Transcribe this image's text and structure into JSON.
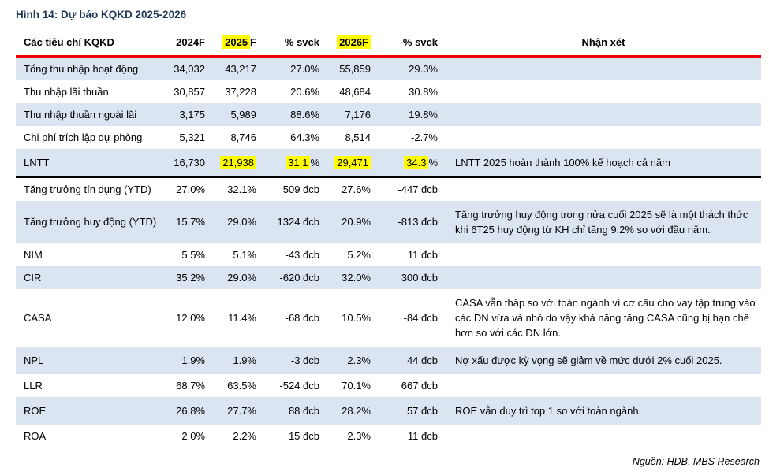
{
  "figure_title": "Hình 14: Dự báo KQKD 2025-2026",
  "source_note": "Nguồn: HDB, MBS Research",
  "colors": {
    "title": "#1f3655",
    "header_rule": "#ee0000",
    "row_alt": "#dbe5f1",
    "highlight": "#ffff00",
    "separator": "#000000"
  },
  "table": {
    "columns": [
      {
        "key": "label",
        "label": "Các tiêu chí KQKD",
        "align": "lbl"
      },
      {
        "key": "y2024",
        "label": "2024F",
        "align": "num"
      },
      {
        "key": "y2025",
        "label": "2025F",
        "label_hl": "2025",
        "align": "num"
      },
      {
        "key": "svck1",
        "label": "% svck",
        "align": "num"
      },
      {
        "key": "y2026",
        "label": "2026F",
        "label_hl": "2026F",
        "align": "num"
      },
      {
        "key": "svck2",
        "label": "% svck",
        "align": "num"
      },
      {
        "key": "note",
        "label": "Nhận xét",
        "align": "note"
      }
    ],
    "rows": [
      {
        "label": "Tổng thu nhập hoạt động",
        "y2024": "34,032",
        "y2025": "43,217",
        "svck1": "27.0%",
        "y2026": "55,859",
        "svck2": "29.3%",
        "note": ""
      },
      {
        "label": "Thu nhập lãi thuần",
        "y2024": "30,857",
        "y2025": "37,228",
        "svck1": "20.6%",
        "y2026": "48,684",
        "svck2": "30.8%",
        "note": ""
      },
      {
        "label": "Thu nhập thuần ngoài lãi",
        "y2024": "3,175",
        "y2025": "5,989",
        "svck1": "88.6%",
        "y2026": "7,176",
        "svck2": "19.8%",
        "note": ""
      },
      {
        "label": "Chi phí trích lập dự phòng",
        "y2024": "5,321",
        "y2025": "8,746",
        "svck1": "64.3%",
        "y2026": "8,514",
        "svck2": "-2.7%",
        "note": ""
      },
      {
        "label": "LNTT",
        "y2024": "16,730",
        "y2025": "21,938",
        "svck1": "31.1%",
        "y2026": "29,471",
        "svck2": "34.3%",
        "note": "LNTT 2025 hoàn thành 100% kế hoạch cả năm",
        "separator_below": true,
        "hl": {
          "y2025": "21,938",
          "svck1": "31.1",
          "y2026": "29,471",
          "svck2": "34.3"
        }
      },
      {
        "label": "Tăng trưởng tín dụng (YTD)",
        "y2024": "27.0%",
        "y2025": "32.1%",
        "svck1": "509 đcb",
        "y2026": "27.6%",
        "svck2": "-447 đcb",
        "note": ""
      },
      {
        "label": "Tăng trưởng huy động (YTD)",
        "y2024": "15.7%",
        "y2025": "29.0%",
        "svck1": "1324 đcb",
        "y2026": "20.9%",
        "svck2": "-813 đcb",
        "note": "Tăng trưởng huy động trong nửa cuối 2025 sẽ là một thách thức khi 6T25 huy động từ KH chỉ tăng 9.2% so với đầu năm."
      },
      {
        "label": "NIM",
        "y2024": "5.5%",
        "y2025": "5.1%",
        "svck1": "-43 đcb",
        "y2026": "5.2%",
        "svck2": "11 đcb",
        "note": ""
      },
      {
        "label": "CIR",
        "y2024": "35.2%",
        "y2025": "29.0%",
        "svck1": "-620 đcb",
        "y2026": "32.0%",
        "svck2": "300 đcb",
        "note": ""
      },
      {
        "label": "CASA",
        "y2024": "12.0%",
        "y2025": "11.4%",
        "svck1": "-68 đcb",
        "y2026": "10.5%",
        "svck2": "-84 đcb",
        "note": "CASA vẫn thấp so với toàn ngành vì cơ cấu cho vay tập trung vào các DN vừa và nhỏ do vậy khả năng tăng CASA cũng bị hạn chế hơn so với các DN lớn."
      },
      {
        "label": "NPL",
        "y2024": "1.9%",
        "y2025": "1.9%",
        "svck1": "-3 đcb",
        "y2026": "2.3%",
        "svck2": "44 đcb",
        "note": "Nợ xấu được kỳ vọng sẽ giảm về mức dưới 2% cuối 2025."
      },
      {
        "label": "LLR",
        "y2024": "68.7%",
        "y2025": "63.5%",
        "svck1": "-524 đcb",
        "y2026": "70.1%",
        "svck2": "667 đcb",
        "note": ""
      },
      {
        "label": "ROE",
        "y2024": "26.8%",
        "y2025": "27.7%",
        "svck1": "88 đcb",
        "y2026": "28.2%",
        "svck2": "57 đcb",
        "note": "ROE vẫn duy trì top 1 so với toàn ngành."
      },
      {
        "label": "ROA",
        "y2024": "2.0%",
        "y2025": "2.2%",
        "svck1": "15 đcb",
        "y2026": "2.3%",
        "svck2": "11 đcb",
        "note": ""
      }
    ]
  }
}
